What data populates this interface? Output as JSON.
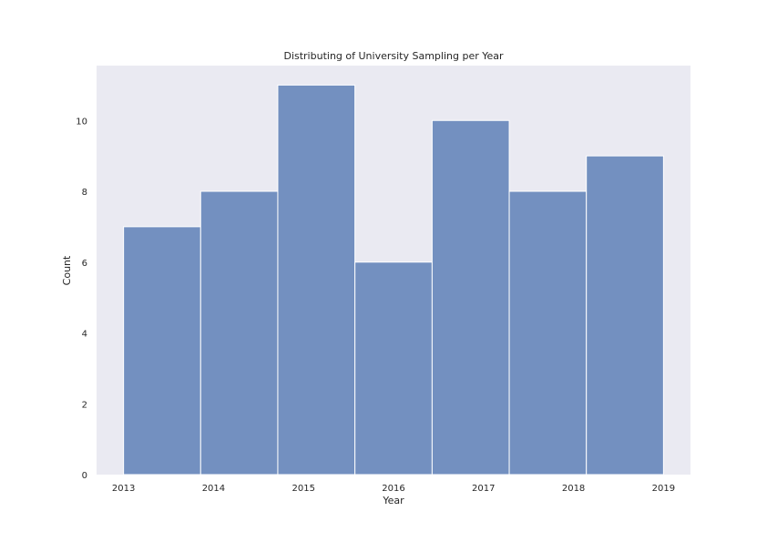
{
  "chart_data": {
    "type": "bar",
    "title": "Distributing of University Sampling per Year",
    "xlabel": "Year",
    "ylabel": "Count",
    "bins": [
      {
        "start": 2013.0,
        "end": 2013.857,
        "count": 7
      },
      {
        "start": 2013.857,
        "end": 2014.714,
        "count": 8
      },
      {
        "start": 2014.714,
        "end": 2015.571,
        "count": 11
      },
      {
        "start": 2015.571,
        "end": 2016.429,
        "count": 6
      },
      {
        "start": 2016.429,
        "end": 2017.286,
        "count": 10
      },
      {
        "start": 2017.286,
        "end": 2018.143,
        "count": 8
      },
      {
        "start": 2018.143,
        "end": 2019.0,
        "count": 9
      }
    ],
    "xticks": [
      2013,
      2014,
      2015,
      2016,
      2017,
      2018,
      2019
    ],
    "yticks": [
      0,
      2,
      4,
      6,
      8,
      10
    ],
    "xlim": [
      2012.7,
      2019.3
    ],
    "ylim": [
      0,
      11.55
    ],
    "grid": false,
    "colors": {
      "bar": "#7390c0",
      "bar_edge": "#ffffff",
      "plot_background": "#eaeaf2",
      "figure_background": "#ffffff"
    }
  }
}
